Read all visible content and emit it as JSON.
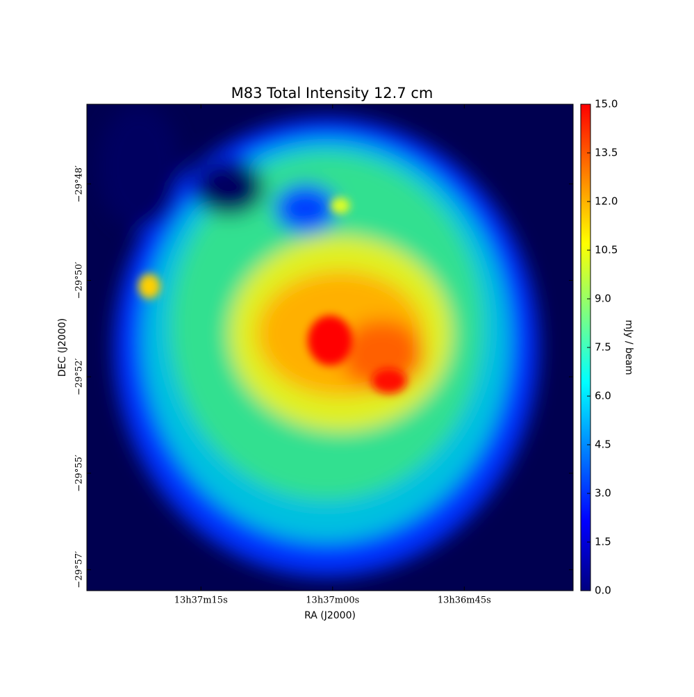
{
  "chart_data": {
    "type": "image",
    "title": "M83 Total Intensity 12.7 cm",
    "xlabel": "RA (J2000)",
    "ylabel": "DEC (J2000)",
    "colorbar_label": "mJy / beam",
    "xlim": [
      49048,
      48992.6
    ],
    "xticks": [
      {
        "value": 49035,
        "label": "13h37m15s"
      },
      {
        "value": 49020,
        "label": "13h37m00s"
      },
      {
        "value": 49005,
        "label": "13h36m45s"
      }
    ],
    "ylim": [
      -57.49,
      -46.14
    ],
    "yticks": [
      {
        "value": -48,
        "label": "−29°48′"
      },
      {
        "value": -50.25,
        "label": "−29°50′"
      },
      {
        "value": -52.5,
        "label": "−29°52′"
      },
      {
        "value": -54.75,
        "label": "−29°55′"
      },
      {
        "value": -57,
        "label": "−29°57′"
      }
    ],
    "clim": [
      0,
      15
    ],
    "cticks": [
      {
        "value": 0,
        "label": "0.0"
      },
      {
        "value": 1.5,
        "label": "1.5"
      },
      {
        "value": 3,
        "label": "3.0"
      },
      {
        "value": 4.5,
        "label": "4.5"
      },
      {
        "value": 6,
        "label": "6.0"
      },
      {
        "value": 7.5,
        "label": "7.5"
      },
      {
        "value": 9,
        "label": "9.0"
      },
      {
        "value": 10.5,
        "label": "10.5"
      },
      {
        "value": 12,
        "label": "12.0"
      },
      {
        "value": 13.5,
        "label": "13.5"
      },
      {
        "value": 15,
        "label": "15.0"
      }
    ],
    "colormap": [
      "#00007f",
      "#0000ff",
      "#007fff",
      "#00ffff",
      "#7fff7f",
      "#ffff00",
      "#ff7f00",
      "#ff0000"
    ]
  }
}
